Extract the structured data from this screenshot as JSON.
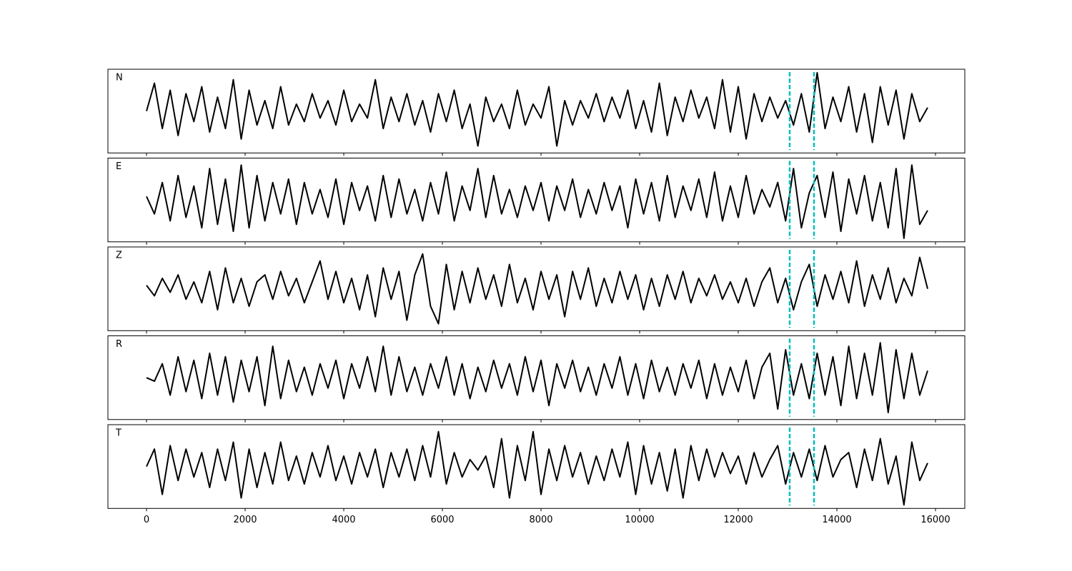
{
  "chart_data": {
    "type": "line",
    "x": [
      0,
      160,
      320,
      480,
      640,
      800,
      960,
      1120,
      1280,
      1440,
      1600,
      1760,
      1920,
      2080,
      2240,
      2400,
      2560,
      2720,
      2880,
      3040,
      3200,
      3360,
      3520,
      3680,
      3840,
      4000,
      4160,
      4320,
      4480,
      4640,
      4800,
      4960,
      5120,
      5280,
      5440,
      5600,
      5760,
      5920,
      6080,
      6240,
      6400,
      6560,
      6720,
      6880,
      7040,
      7200,
      7360,
      7520,
      7680,
      7840,
      8000,
      8160,
      8320,
      8480,
      8640,
      8800,
      8960,
      9120,
      9280,
      9440,
      9600,
      9760,
      9920,
      10080,
      10240,
      10400,
      10560,
      10720,
      10880,
      11040,
      11200,
      11360,
      11520,
      11680,
      11840,
      12000,
      12160,
      12320,
      12480,
      12640,
      12800,
      12960,
      13120,
      13280,
      13440,
      13600,
      13760,
      13920,
      14080,
      14240,
      14400,
      14560,
      14720,
      14880,
      15040,
      15200,
      15360,
      15520,
      15680,
      15840
    ],
    "series": [
      {
        "name": "N",
        "color": "#000000",
        "values": [
          0,
          0.8,
          -0.5,
          0.6,
          -0.7,
          0.5,
          -0.3,
          0.7,
          -0.6,
          0.4,
          -0.5,
          0.9,
          -0.8,
          0.6,
          -0.4,
          0.3,
          -0.5,
          0.7,
          -0.4,
          0.2,
          -0.3,
          0.5,
          -0.2,
          0.3,
          -0.4,
          0.6,
          -0.3,
          0.2,
          -0.2,
          0.9,
          -0.5,
          0.4,
          -0.3,
          0.5,
          -0.4,
          0.3,
          -0.6,
          0.5,
          -0.3,
          0.6,
          -0.5,
          0.2,
          -1.0,
          0.4,
          -0.3,
          0.2,
          -0.5,
          0.6,
          -0.4,
          0.2,
          -0.2,
          0.7,
          -1.0,
          0.3,
          -0.4,
          0.3,
          -0.2,
          0.5,
          -0.3,
          0.4,
          -0.2,
          0.6,
          -0.5,
          0.3,
          -0.6,
          0.8,
          -0.7,
          0.4,
          -0.3,
          0.6,
          -0.2,
          0.4,
          -0.5,
          0.9,
          -0.6,
          0.7,
          -0.8,
          0.5,
          -0.3,
          0.4,
          -0.2,
          0.3,
          -0.4,
          0.5,
          -0.6,
          1.1,
          -0.5,
          0.4,
          -0.3,
          0.7,
          -0.6,
          0.5,
          -0.9,
          0.7,
          -0.4,
          0.6,
          -0.8,
          0.5,
          -0.3,
          0.1
        ]
      },
      {
        "name": "E",
        "color": "#000000",
        "values": [
          0.1,
          -0.4,
          0.5,
          -0.6,
          0.7,
          -0.5,
          0.4,
          -0.8,
          0.9,
          -0.7,
          0.6,
          -0.9,
          1.0,
          -0.8,
          0.7,
          -0.6,
          0.5,
          -0.4,
          0.6,
          -0.7,
          0.5,
          -0.4,
          0.3,
          -0.5,
          0.6,
          -0.7,
          0.5,
          -0.3,
          0.4,
          -0.6,
          0.7,
          -0.5,
          0.6,
          -0.4,
          0.3,
          -0.6,
          0.5,
          -0.4,
          0.8,
          -0.6,
          0.4,
          -0.3,
          0.9,
          -0.5,
          0.7,
          -0.4,
          0.3,
          -0.5,
          0.4,
          -0.3,
          0.5,
          -0.6,
          0.4,
          -0.3,
          0.6,
          -0.5,
          0.3,
          -0.4,
          0.5,
          -0.3,
          0.4,
          -0.8,
          0.6,
          -0.4,
          0.5,
          -0.6,
          0.7,
          -0.5,
          0.4,
          -0.3,
          0.6,
          -0.5,
          0.8,
          -0.6,
          0.4,
          -0.5,
          0.7,
          -0.4,
          0.3,
          -0.2,
          0.5,
          -0.6,
          0.9,
          -0.8,
          0.2,
          0.7,
          -0.5,
          0.8,
          -0.9,
          0.6,
          -0.4,
          0.7,
          -0.6,
          0.5,
          -0.8,
          0.9,
          -1.1,
          1.0,
          -0.7,
          -0.3
        ]
      },
      {
        "name": "Z",
        "color": "#000000",
        "values": [
          0.1,
          -0.2,
          0.3,
          -0.1,
          0.4,
          -0.3,
          0.2,
          -0.4,
          0.5,
          -0.6,
          0.6,
          -0.4,
          0.3,
          -0.5,
          0.2,
          0.4,
          -0.3,
          0.5,
          -0.2,
          0.3,
          -0.4,
          0.2,
          0.8,
          -0.3,
          0.5,
          -0.4,
          0.3,
          -0.6,
          0.4,
          -0.8,
          0.6,
          -0.3,
          0.5,
          -0.9,
          0.4,
          1.0,
          -0.5,
          -1.0,
          0.7,
          -0.6,
          0.5,
          -0.4,
          0.6,
          -0.3,
          0.4,
          -0.5,
          0.7,
          -0.4,
          0.3,
          -0.6,
          0.5,
          -0.3,
          0.4,
          -0.8,
          0.5,
          -0.3,
          0.6,
          -0.5,
          0.3,
          -0.4,
          0.5,
          -0.3,
          0.4,
          -0.6,
          0.3,
          -0.5,
          0.4,
          -0.3,
          0.5,
          -0.4,
          0.3,
          -0.2,
          0.4,
          -0.3,
          0.2,
          -0.4,
          0.3,
          -0.5,
          0.2,
          0.6,
          -0.4,
          0.3,
          -0.6,
          0.2,
          0.7,
          -0.5,
          0.4,
          -0.3,
          0.5,
          -0.4,
          0.8,
          -0.5,
          0.4,
          -0.3,
          0.6,
          -0.4,
          0.3,
          -0.2,
          0.9,
          0.0
        ]
      },
      {
        "name": "R",
        "color": "#000000",
        "values": [
          0.0,
          -0.1,
          0.4,
          -0.5,
          0.6,
          -0.4,
          0.5,
          -0.6,
          0.7,
          -0.5,
          0.6,
          -0.7,
          0.5,
          -0.4,
          0.6,
          -0.8,
          0.9,
          -0.6,
          0.5,
          -0.4,
          0.3,
          -0.5,
          0.4,
          -0.3,
          0.5,
          -0.6,
          0.4,
          -0.3,
          0.6,
          -0.4,
          0.9,
          -0.5,
          0.6,
          -0.4,
          0.3,
          -0.5,
          0.4,
          -0.3,
          0.6,
          -0.5,
          0.4,
          -0.6,
          0.3,
          -0.4,
          0.5,
          -0.3,
          0.4,
          -0.5,
          0.6,
          -0.4,
          0.5,
          -0.8,
          0.4,
          -0.3,
          0.5,
          -0.4,
          0.3,
          -0.5,
          0.4,
          -0.3,
          0.6,
          -0.5,
          0.4,
          -0.6,
          0.5,
          -0.4,
          0.3,
          -0.5,
          0.4,
          -0.3,
          0.5,
          -0.6,
          0.4,
          -0.5,
          0.3,
          -0.4,
          0.5,
          -0.6,
          0.3,
          0.7,
          -0.9,
          0.8,
          -0.5,
          0.4,
          -0.6,
          0.7,
          -0.5,
          0.6,
          -0.8,
          0.9,
          -0.6,
          0.7,
          -0.5,
          1.0,
          -1.0,
          0.8,
          -0.6,
          0.7,
          -0.5,
          0.2
        ]
      },
      {
        "name": "T",
        "color": "#000000",
        "values": [
          0.0,
          0.5,
          -0.8,
          0.6,
          -0.4,
          0.5,
          -0.3,
          0.4,
          -0.6,
          0.5,
          -0.4,
          0.7,
          -0.9,
          0.5,
          -0.6,
          0.4,
          -0.5,
          0.7,
          -0.4,
          0.3,
          -0.5,
          0.4,
          -0.3,
          0.6,
          -0.4,
          0.3,
          -0.5,
          0.4,
          -0.3,
          0.5,
          -0.6,
          0.4,
          -0.3,
          0.5,
          -0.4,
          0.6,
          -0.3,
          1.0,
          -0.5,
          0.4,
          -0.3,
          0.2,
          -0.1,
          0.3,
          -0.6,
          0.8,
          -0.9,
          0.6,
          -0.4,
          1.0,
          -0.8,
          0.5,
          -0.4,
          0.6,
          -0.3,
          0.4,
          -0.5,
          0.3,
          -0.4,
          0.5,
          -0.3,
          0.7,
          -0.8,
          0.6,
          -0.5,
          0.4,
          -0.7,
          0.5,
          -0.9,
          0.6,
          -0.4,
          0.5,
          -0.3,
          0.4,
          -0.2,
          0.3,
          -0.5,
          0.4,
          -0.3,
          0.2,
          0.6,
          -0.5,
          0.4,
          -0.3,
          0.5,
          -0.4,
          0.6,
          -0.3,
          0.2,
          0.4,
          -0.6,
          0.5,
          -0.4,
          0.8,
          -0.5,
          0.3,
          -1.1,
          0.7,
          -0.4,
          0.1
        ]
      }
    ],
    "xlim": [
      -783,
      16594
    ],
    "ylim": [
      -1.2,
      1.2
    ],
    "xticks": [
      0,
      2000,
      4000,
      6000,
      8000,
      10000,
      12000,
      14000,
      16000
    ],
    "vlines": [
      13043,
      13536
    ],
    "vline_color": "#00bfbf"
  }
}
